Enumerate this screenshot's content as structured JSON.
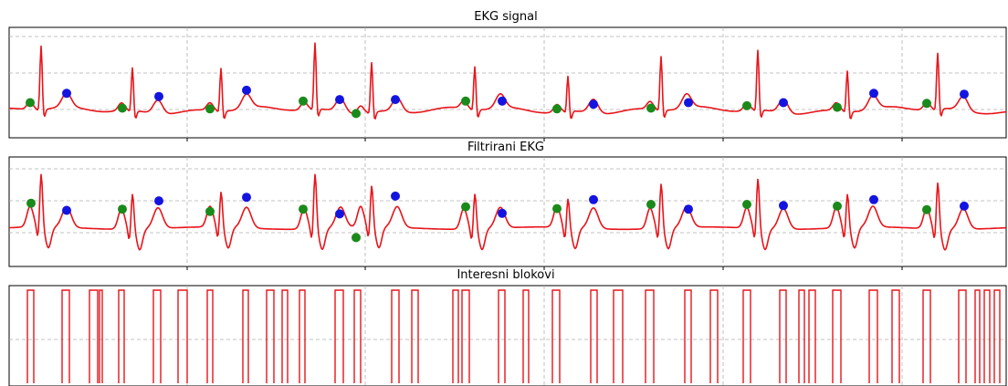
{
  "colors": {
    "trace": "#e8141a",
    "pwave": "#1a8a1a",
    "twave": "#1414e0",
    "grid": "#b0b0b0"
  },
  "chart_data": [
    {
      "type": "line",
      "title": "EKG signal",
      "grid": true,
      "beats_r_time": [
        45,
        145,
        242,
        345,
        407,
        520,
        622,
        724,
        830,
        928,
        1027
      ],
      "p_markers": [
        [
          33,
          0.1
        ],
        [
          134,
          0.03
        ],
        [
          230,
          0.02
        ],
        [
          332,
          0.12
        ],
        [
          390,
          -0.04
        ],
        [
          510,
          0.12
        ],
        [
          610,
          0.02
        ],
        [
          713,
          0.03
        ],
        [
          818,
          0.06
        ],
        [
          917,
          0.04
        ],
        [
          1015,
          0.09
        ]
      ],
      "t_markers": [
        [
          73,
          0.22
        ],
        [
          174,
          0.18
        ],
        [
          270,
          0.26
        ],
        [
          372,
          0.14
        ],
        [
          433,
          0.14
        ],
        [
          550,
          0.12
        ],
        [
          650,
          0.08
        ],
        [
          754,
          0.1
        ],
        [
          858,
          0.1
        ],
        [
          957,
          0.22
        ],
        [
          1056,
          0.21
        ]
      ],
      "ylim": [
        -0.2,
        1.05
      ]
    },
    {
      "type": "line",
      "title": "Filtrirani EKG",
      "grid": true,
      "p_markers": [
        [
          34,
          0.42
        ],
        [
          134,
          0.32
        ],
        [
          230,
          0.28
        ],
        [
          332,
          0.32
        ],
        [
          390,
          -0.16
        ],
        [
          510,
          0.36
        ],
        [
          610,
          0.33
        ],
        [
          713,
          0.4
        ],
        [
          818,
          0.4
        ],
        [
          917,
          0.37
        ],
        [
          1015,
          0.31
        ]
      ],
      "t_markers": [
        [
          73,
          0.3
        ],
        [
          174,
          0.46
        ],
        [
          270,
          0.52
        ],
        [
          372,
          0.24
        ],
        [
          433,
          0.54
        ],
        [
          550,
          0.25
        ],
        [
          650,
          0.48
        ],
        [
          754,
          0.32
        ],
        [
          858,
          0.38
        ],
        [
          957,
          0.48
        ],
        [
          1056,
          0.37
        ]
      ],
      "ylim": [
        -0.3,
        1.05
      ]
    },
    {
      "type": "line",
      "title": "Interesni blokovi",
      "grid": true,
      "blocks": [
        [
          30,
          37
        ],
        [
          68,
          76
        ],
        [
          98,
          107
        ],
        [
          109,
          112
        ],
        [
          130,
          136
        ],
        [
          168,
          176
        ],
        [
          195,
          205
        ],
        [
          227,
          233
        ],
        [
          266,
          272
        ],
        [
          292,
          300
        ],
        [
          309,
          315
        ],
        [
          328,
          334
        ],
        [
          367,
          376
        ],
        [
          388,
          395
        ],
        [
          429,
          437
        ],
        [
          451,
          458
        ],
        [
          496,
          502
        ],
        [
          506,
          514
        ],
        [
          546,
          553
        ],
        [
          573,
          579
        ],
        [
          605,
          613
        ],
        [
          647,
          654
        ],
        [
          672,
          682
        ],
        [
          707,
          716
        ],
        [
          750,
          757
        ],
        [
          778,
          786
        ],
        [
          814,
          822
        ],
        [
          854,
          861
        ],
        [
          875,
          881
        ],
        [
          886,
          893
        ],
        [
          912,
          921
        ],
        [
          952,
          961
        ],
        [
          977,
          985
        ],
        [
          1011,
          1019
        ],
        [
          1050,
          1058
        ],
        [
          1068,
          1073
        ],
        [
          1078,
          1084
        ],
        [
          1089,
          1095
        ]
      ],
      "ylim": [
        0,
        1.1
      ]
    }
  ]
}
